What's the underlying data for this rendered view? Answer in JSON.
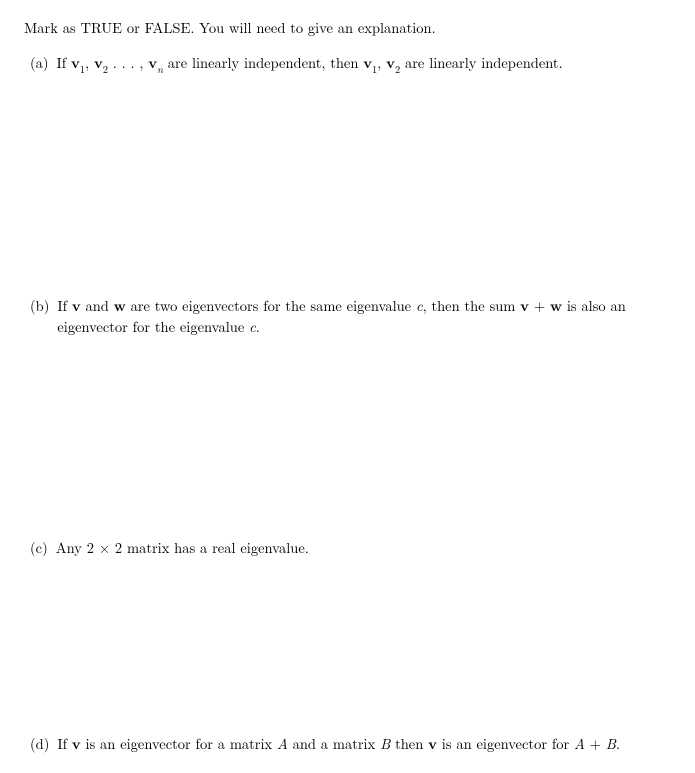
{
  "instruction": "Mark as TRUE or FALSE. You will need to give an explanation.",
  "parts": {
    "a": {
      "label": "(a)",
      "prefix": "If ",
      "v1": "v",
      "s1": "1",
      "comma1": ", ",
      "v2": "v",
      "s2": "2",
      "dots": " . . . , ",
      "vn": "v",
      "sn": "n",
      "mid": " are linearly independent, then ",
      "v1b": "v",
      "s1b": "1",
      "comma2": ", ",
      "v2b": "v",
      "s2b": "2",
      "suffix": " are linearly independent."
    },
    "b": {
      "label": "(b)",
      "t1": "If ",
      "v": "v",
      "t2": " and ",
      "w": "w",
      "t3": " are two eigenvectors for the same eigenvalue ",
      "c1": "c",
      "t4": ", then the sum ",
      "v2": "v",
      "plus": " + ",
      "w2": "w",
      "t5": " is also an eigenvector for the eigenvalue ",
      "c2": "c",
      "t6": "."
    },
    "c": {
      "label": "(c)",
      "text": "Any 2 × 2 matrix has a real eigenvalue."
    },
    "d": {
      "label": "(d)",
      "t1": "If ",
      "v": "v",
      "t2": " is an eigenvector for a matrix ",
      "A1": "A",
      "t3": " and a matrix ",
      "B1": "B",
      "t4": " then ",
      "v2": "v",
      "t5": " is an eigenvector for ",
      "A2": "A",
      "plus": " + ",
      "B2": "B",
      "t6": "."
    }
  }
}
